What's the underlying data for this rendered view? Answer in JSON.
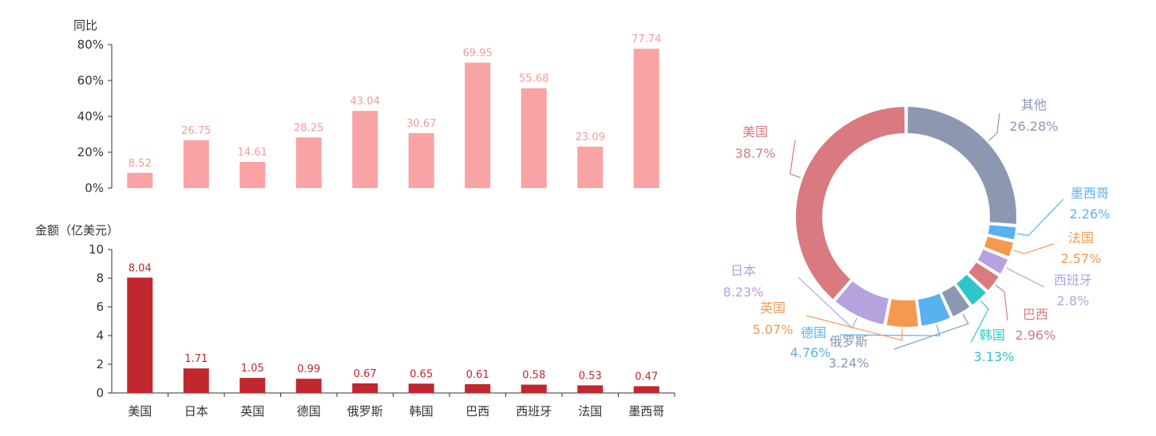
{
  "chart_data": [
    {
      "type": "bar",
      "ylabel": "同比",
      "ylim": [
        0,
        80
      ],
      "yticks": [
        "0%",
        "20%",
        "40%",
        "60%",
        "80%"
      ],
      "ytick_values": [
        0,
        20,
        40,
        60,
        80
      ],
      "categories": [
        "美国",
        "日本",
        "英国",
        "德国",
        "俄罗斯",
        "韩国",
        "巴西",
        "西班牙",
        "法国",
        "墨西哥"
      ],
      "values": [
        8.52,
        26.75,
        14.61,
        28.25,
        43.04,
        30.67,
        69.95,
        55.68,
        23.09,
        77.74
      ],
      "labels": [
        "8.52",
        "26.75",
        "14.61",
        "28.25",
        "43.04",
        "30.67",
        "69.95",
        "55.68",
        "23.09",
        "77.74"
      ],
      "color": "#f9a3a4"
    },
    {
      "type": "bar",
      "ylabel": "金额（亿美元）",
      "ylim": [
        0,
        10
      ],
      "yticks": [
        "0",
        "2",
        "4",
        "6",
        "8",
        "10"
      ],
      "ytick_values": [
        0,
        2,
        4,
        6,
        8,
        10
      ],
      "categories": [
        "美国",
        "日本",
        "英国",
        "德国",
        "俄罗斯",
        "韩国",
        "巴西",
        "西班牙",
        "法国",
        "墨西哥"
      ],
      "values": [
        8.04,
        1.71,
        1.05,
        0.99,
        0.67,
        0.65,
        0.61,
        0.58,
        0.53,
        0.47
      ],
      "labels": [
        "8.04",
        "1.71",
        "1.05",
        "0.99",
        "0.67",
        "0.65",
        "0.61",
        "0.58",
        "0.53",
        "0.47"
      ],
      "color": "#c1272f"
    },
    {
      "type": "pie",
      "donut": true,
      "slices": [
        {
          "name": "其他",
          "value": 26.28,
          "label": "26.28%",
          "color": "#8c97b2"
        },
        {
          "name": "墨西哥",
          "value": 2.26,
          "label": "2.26%",
          "color": "#5ab1ef"
        },
        {
          "name": "法国",
          "value": 2.57,
          "label": "2.57%",
          "color": "#f5994e"
        },
        {
          "name": "西班牙",
          "value": 2.8,
          "label": "2.8%",
          "color": "#b6a2de"
        },
        {
          "name": "巴西",
          "value": 2.96,
          "label": "2.96%",
          "color": "#d87a80"
        },
        {
          "name": "韩国",
          "value": 3.13,
          "label": "3.13%",
          "color": "#2ec7c9"
        },
        {
          "name": "俄罗斯",
          "value": 3.24,
          "label": "3.24%",
          "color": "#8c97b2"
        },
        {
          "name": "德国",
          "value": 4.76,
          "label": "4.76%",
          "color": "#5ab1ef"
        },
        {
          "name": "英国",
          "value": 5.07,
          "label": "5.07%",
          "color": "#f5994e"
        },
        {
          "name": "日本",
          "value": 8.23,
          "label": "8.23%",
          "color": "#b6a2de"
        },
        {
          "name": "美国",
          "value": 38.7,
          "label": "38.7%",
          "color": "#d87a80"
        }
      ]
    }
  ]
}
